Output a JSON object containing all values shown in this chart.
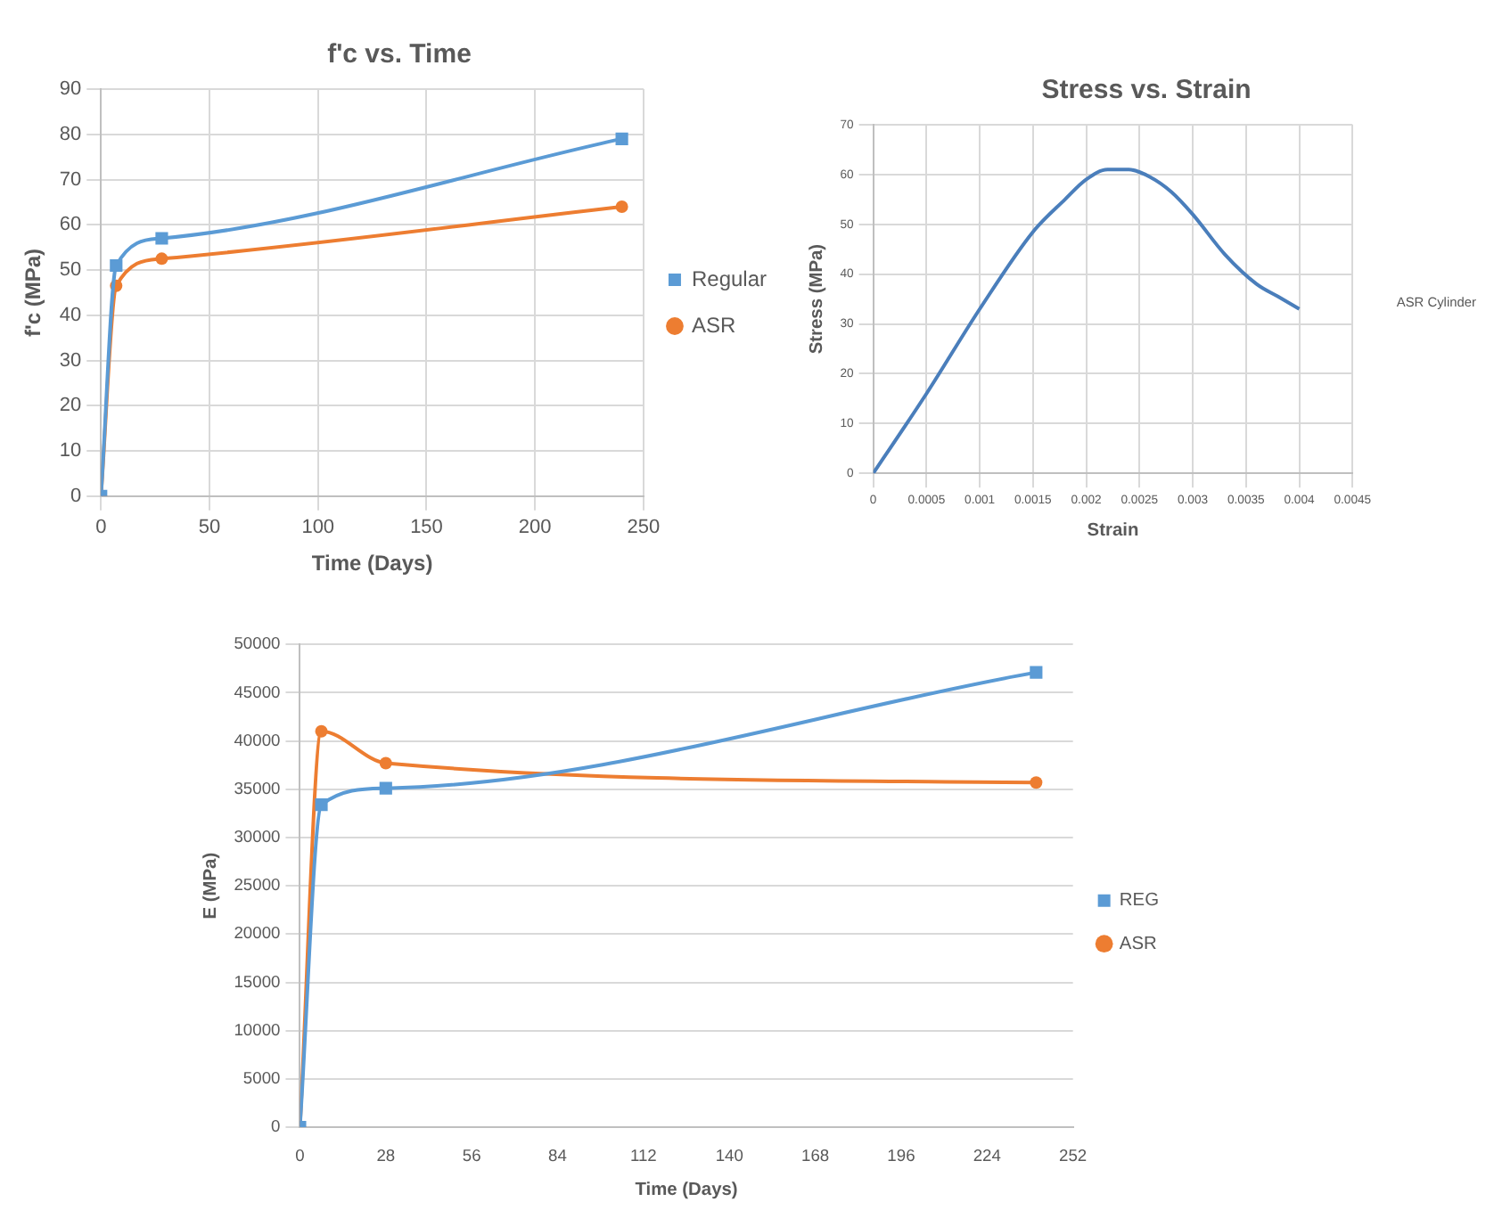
{
  "chart_data": [
    {
      "type": "line",
      "title": "f'c vs. Time",
      "xlabel": "Time (Days)",
      "ylabel": "f'c (MPa)",
      "xlim": [
        0,
        250
      ],
      "xticks": [
        0,
        50,
        100,
        150,
        200,
        250
      ],
      "ylim": [
        0,
        90
      ],
      "yticks": [
        0,
        10,
        20,
        30,
        40,
        50,
        60,
        70,
        80,
        90
      ],
      "grid": true,
      "legend": "right",
      "x": [
        0,
        7,
        28,
        240
      ],
      "series": [
        {
          "name": "Regular",
          "color": "#5b9bd5",
          "marker": "square",
          "values": [
            0,
            51,
            57,
            79
          ]
        },
        {
          "name": "ASR",
          "color": "#ed7d31",
          "marker": "circle",
          "values": [
            0,
            46.5,
            52.5,
            64
          ]
        }
      ]
    },
    {
      "type": "line",
      "title": "Stress vs. Strain",
      "xlabel": "Strain",
      "ylabel": "Stress (MPa)",
      "xlim": [
        0,
        0.0045
      ],
      "xticks": [
        0,
        0.0005,
        0.001,
        0.0015,
        0.002,
        0.0025,
        0.003,
        0.0035,
        0.004,
        0.0045
      ],
      "ylim": [
        0,
        70
      ],
      "yticks": [
        0,
        10,
        20,
        30,
        40,
        50,
        60,
        70
      ],
      "grid": true,
      "legend": "right",
      "marker": "none",
      "x": [
        0,
        0.0005,
        0.001,
        0.0015,
        0.0018,
        0.002,
        0.0022,
        0.0024,
        0.0026,
        0.0028,
        0.003,
        0.0033,
        0.0036,
        0.0038,
        0.004
      ],
      "series": [
        {
          "name": "ASR Cylinder",
          "color": "#4a7ebb",
          "values": [
            0,
            16,
            33,
            48.5,
            55,
            59,
            61,
            61,
            59.5,
            56.5,
            52,
            44,
            38,
            35.5,
            33
          ]
        }
      ]
    },
    {
      "type": "line",
      "xlabel": "Time (Days)",
      "ylabel": "E (MPa)",
      "xlim": [
        0,
        252
      ],
      "xticks": [
        0,
        28,
        56,
        84,
        112,
        140,
        168,
        196,
        224,
        252
      ],
      "ylim": [
        0,
        50000
      ],
      "yticks": [
        0,
        5000,
        10000,
        15000,
        20000,
        25000,
        30000,
        35000,
        40000,
        45000,
        50000
      ],
      "grid": "y",
      "legend": "right",
      "x": [
        0,
        7,
        28,
        240
      ],
      "series": [
        {
          "name": "REG",
          "color": "#5b9bd5",
          "marker": "square",
          "values": [
            0,
            33400,
            35100,
            47100
          ]
        },
        {
          "name": "ASR",
          "color": "#ed7d31",
          "marker": "circle",
          "values": [
            0,
            41000,
            37700,
            35700
          ]
        }
      ]
    }
  ]
}
